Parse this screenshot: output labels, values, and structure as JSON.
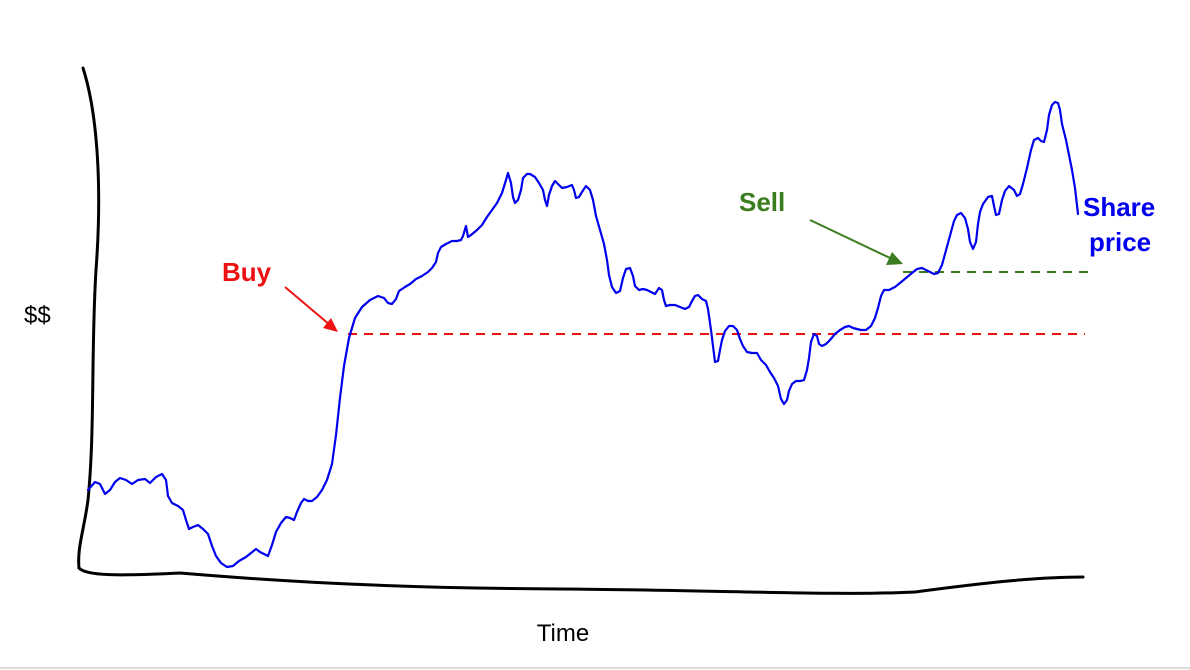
{
  "labels": {
    "y_axis": "$$",
    "x_axis": "Time",
    "buy": "Buy",
    "sell": "Sell",
    "share_line1": "Share",
    "share_line2": "price"
  },
  "colors": {
    "axis": "#000000",
    "price": "#0000ee",
    "buy": "#ee1111",
    "sell": "#3a7d1e"
  }
}
